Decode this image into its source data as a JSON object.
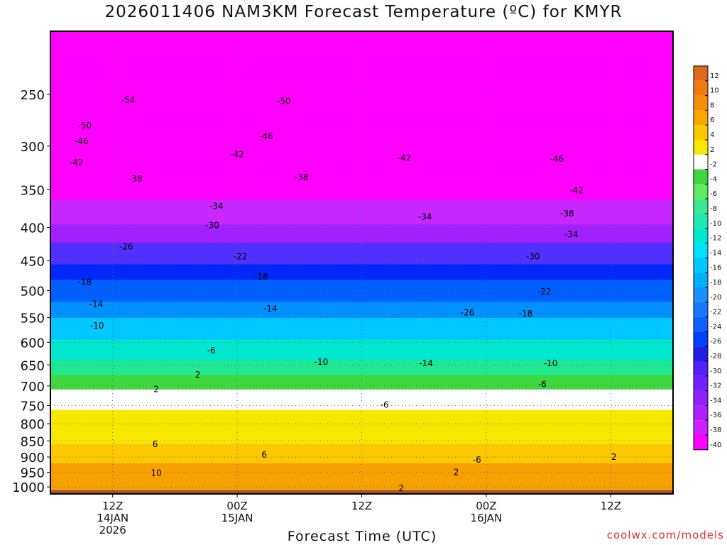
{
  "title": "2026011406 NAM3KM Forecast Temperature (ºC) for KMYR",
  "credit": "coolwx.com/models",
  "chart_data": {
    "type": "heatmap",
    "title": "2026011406 NAM3KM Forecast Temperature (ºC) for KMYR",
    "xlabel": "Forecast Time (UTC)",
    "ylabel": "",
    "y_scale": "log-pressure (hPa), inverted",
    "xlim": [
      0,
      60
    ],
    "ylim": [
      1025,
      200
    ],
    "x_ticks": [
      {
        "label": "12Z",
        "sub": [
          "14JAN",
          "2026"
        ],
        "x": 6
      },
      {
        "label": "00Z",
        "sub": [
          "15JAN"
        ],
        "x": 18
      },
      {
        "label": "12Z",
        "sub": [],
        "x": 30
      },
      {
        "label": "00Z",
        "sub": [
          "16JAN"
        ],
        "x": 42
      },
      {
        "label": "12Z",
        "sub": [],
        "x": 54
      }
    ],
    "y_ticks": [
      250,
      300,
      350,
      400,
      450,
      500,
      550,
      600,
      650,
      700,
      750,
      800,
      850,
      900,
      950,
      1000
    ],
    "colorbar": {
      "labels": [
        "12",
        "10",
        "8",
        "6",
        "4",
        "2",
        "-2",
        "-4",
        "-6",
        "-8",
        "-10",
        "-12",
        "-14",
        "-16",
        "-18",
        "-20",
        "-22",
        "-24",
        "-26",
        "-28",
        "-30",
        "-32",
        "-34",
        "-36",
        "-38",
        "-40"
      ],
      "colors": [
        "#e0681a",
        "#f07a10",
        "#f58f0a",
        "#f8a800",
        "#fcc800",
        "#f8e800",
        "#ffffff",
        "#40d840",
        "#60e860",
        "#3ae890",
        "#20e8b0",
        "#00e8d0",
        "#00e0ff",
        "#00c8ff",
        "#00b0ff",
        "#1890ff",
        "#1878ff",
        "#1060ff",
        "#0040ff",
        "#2020e0",
        "#5020ff",
        "#7020ff",
        "#9020ff",
        "#b020ff",
        "#d020ff",
        "#ff00ff"
      ]
    },
    "isotherm_labels": [
      {
        "t": -54,
        "x": 7.5,
        "p": 255
      },
      {
        "t": -50,
        "x": 22.5,
        "p": 256
      },
      {
        "t": -50,
        "x": 3.3,
        "p": 279
      },
      {
        "t": -46,
        "x": 3,
        "p": 295
      },
      {
        "t": -46,
        "x": 20.8,
        "p": 290
      },
      {
        "t": -46,
        "x": 48.8,
        "p": 314
      },
      {
        "t": -42,
        "x": 2.5,
        "p": 318
      },
      {
        "t": -42,
        "x": 18,
        "p": 309
      },
      {
        "t": -42,
        "x": 34.1,
        "p": 313
      },
      {
        "t": -42,
        "x": 50.7,
        "p": 351
      },
      {
        "t": -38,
        "x": 8.2,
        "p": 337
      },
      {
        "t": -38,
        "x": 24.2,
        "p": 335
      },
      {
        "t": -38,
        "x": 49.8,
        "p": 381
      },
      {
        "t": -34,
        "x": 16,
        "p": 371
      },
      {
        "t": -34,
        "x": 36.1,
        "p": 385
      },
      {
        "t": -34,
        "x": 50.2,
        "p": 410
      },
      {
        "t": -30,
        "x": 15.6,
        "p": 397
      },
      {
        "t": -30,
        "x": 46.5,
        "p": 443
      },
      {
        "t": -26,
        "x": 7.3,
        "p": 428
      },
      {
        "t": -26,
        "x": 40.2,
        "p": 540
      },
      {
        "t": -22,
        "x": 18.3,
        "p": 443
      },
      {
        "t": -22,
        "x": 47.6,
        "p": 502
      },
      {
        "t": -18,
        "x": 3.3,
        "p": 485
      },
      {
        "t": -18,
        "x": 20.3,
        "p": 476
      },
      {
        "t": -18,
        "x": 45.8,
        "p": 542
      },
      {
        "t": -14,
        "x": 4.4,
        "p": 524
      },
      {
        "t": -14,
        "x": 21.2,
        "p": 533
      },
      {
        "t": -14,
        "x": 36.2,
        "p": 646
      },
      {
        "t": -10,
        "x": 4.5,
        "p": 566
      },
      {
        "t": -10,
        "x": 26.1,
        "p": 643
      },
      {
        "t": -10,
        "x": 48.2,
        "p": 646
      },
      {
        "t": -6,
        "x": 15.5,
        "p": 618
      },
      {
        "t": -6,
        "x": 32.2,
        "p": 748
      },
      {
        "t": -6,
        "x": 47.4,
        "p": 696
      },
      {
        "t": -6,
        "x": 41.1,
        "p": 909
      },
      {
        "t": 2,
        "x": 14.2,
        "p": 673
      },
      {
        "t": 2,
        "x": 10.2,
        "p": 708
      },
      {
        "t": 2,
        "x": 39.1,
        "p": 950
      },
      {
        "t": 2,
        "x": 33.8,
        "p": 1005
      },
      {
        "t": 2,
        "x": 54.3,
        "p": 900
      },
      {
        "t": 6,
        "x": 10.1,
        "p": 860
      },
      {
        "t": 6,
        "x": 20.6,
        "p": 893
      },
      {
        "t": 10,
        "x": 10.2,
        "p": 952
      }
    ]
  }
}
